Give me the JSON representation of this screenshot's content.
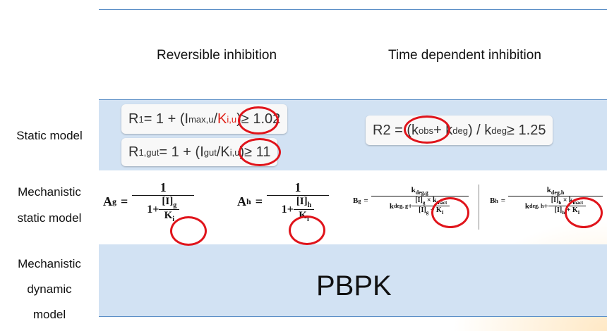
{
  "headers": {
    "reversible": "Reversible inhibition",
    "time_dependent": "Time dependent inhibition"
  },
  "row_labels": {
    "static": "Static model",
    "mech_static_1": "Mechanistic",
    "mech_static_2": "static model",
    "mech_dynamic_1": "Mechanistic",
    "mech_dynamic_2": "dynamic",
    "mech_dynamic_3": "model"
  },
  "static_formulas": {
    "r1": {
      "lhs": "R",
      "lhs_sub": "1",
      "mid": " = 1 + (I",
      "imax_sub": "max,u",
      "slash": " / ",
      "k": "K",
      "k_sub": "i,u",
      "close": ")",
      "cond": " ≥ 1.02"
    },
    "r1gut": {
      "lhs": "R",
      "lhs_sub": "1,gut",
      "mid": " = 1 + (I",
      "igut_sub": "gut",
      "slash": " / ",
      "k": "K",
      "k_sub": "i,u",
      "close": ")",
      "cond": " ≥ 11"
    },
    "r2": {
      "lhs": "R2 = (k",
      "kobs_sub": "obs",
      "plus": " + k",
      "kdeg_sub": "deg",
      "div": ") / k",
      "kdeg2_sub": "deg",
      "cond": " ≥ 1.25"
    }
  },
  "mechanistic_formulas": {
    "ag": {
      "lhs": "A",
      "lhs_sub": "g",
      "eq": "=",
      "num": "1",
      "den_prefix": "1+",
      "conc": "[I]",
      "conc_sub": "g",
      "k": "K",
      "k_sub": "i"
    },
    "ah": {
      "lhs": "A",
      "lhs_sub": "h",
      "eq": "=",
      "num": "1",
      "den_prefix": "1+",
      "conc": "[I]",
      "conc_sub": "h",
      "k": "K",
      "k_sub": "i"
    },
    "bg": {
      "lhs": "B",
      "lhs_sub": "g",
      "eq": "=",
      "num": "k",
      "num_sub": "deg,g",
      "den_a": "k",
      "den_a_sub": "deg, g",
      "plus": " + ",
      "c": "[I]",
      "c_sub": "g",
      "times": " × ",
      "kin": "k",
      "kin_sub": "inact",
      "c2": "[I]",
      "c2_sub": "g",
      "plusk": " + K",
      "ki_sub": "I"
    },
    "bh": {
      "lhs": "B",
      "lhs_sub": "h",
      "eq": "=",
      "num": "k",
      "num_sub": "deg,h",
      "den_a": "k",
      "den_a_sub": "deg, h",
      "plus": " + ",
      "c": "[I]",
      "c_sub": "h",
      "times": " × ",
      "kin": "k",
      "kin_sub": "inact",
      "c2": "[I]",
      "c2_sub": "h",
      "plusk": " + K",
      "ki_sub": "I"
    }
  },
  "pbpk": "PBPK",
  "colors": {
    "band": "#d2e2f3",
    "rule": "#5b8fc7",
    "highlight": "#e0141b"
  }
}
